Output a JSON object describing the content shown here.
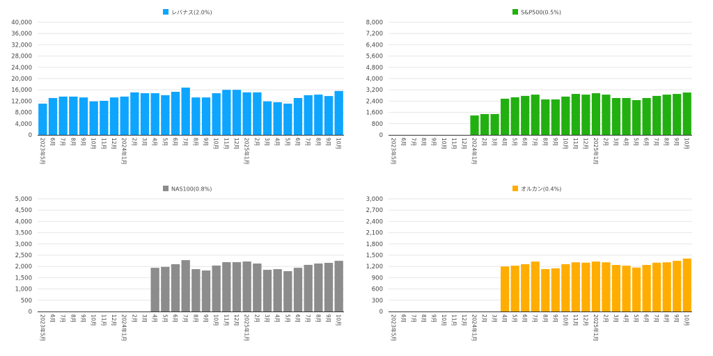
{
  "chart_data": [
    {
      "type": "bar",
      "title": "",
      "legend": {
        "label": "レバナス(2.0%)",
        "position": "top-center"
      },
      "color": "#0ea5ff",
      "xlabel": "",
      "ylabel": "",
      "ylim": [
        0,
        40000
      ],
      "yticks": [
        0,
        4000,
        8000,
        12000,
        16000,
        20000,
        24000,
        28000,
        32000,
        36000,
        40000
      ],
      "ytick_labels": [
        "0",
        "4,000",
        "8,000",
        "12,000",
        "16,000",
        "20,000",
        "24,000",
        "28,000",
        "32,000",
        "36,000",
        "40,000"
      ],
      "grid": true,
      "categories": [
        "2023年5月",
        "6月",
        "7月",
        "8月",
        "9月",
        "10月",
        "11月",
        "12月",
        "2024年1月",
        "2月",
        "3月",
        "4月",
        "5月",
        "6月",
        "7月",
        "8月",
        "9月",
        "10月",
        "11月",
        "12月",
        "2025年1月",
        "2月",
        "3月",
        "4月",
        "5月",
        "6月",
        "7月",
        "8月",
        "9月",
        "10月"
      ],
      "values": [
        11100,
        13100,
        13600,
        13600,
        13300,
        11900,
        12100,
        13300,
        13600,
        15100,
        14800,
        14800,
        14100,
        15300,
        16800,
        13300,
        13300,
        14800,
        16000,
        16000,
        15100,
        15100,
        11900,
        11600,
        11100,
        13100,
        14100,
        14300,
        13800,
        15600
      ]
    },
    {
      "type": "bar",
      "title": "",
      "legend": {
        "label": "S&P500(0.5%)",
        "position": "top-center"
      },
      "color": "#22b010",
      "xlabel": "",
      "ylabel": "",
      "ylim": [
        0,
        8000
      ],
      "yticks": [
        0,
        800,
        1600,
        2400,
        3200,
        4000,
        4800,
        5600,
        6400,
        7200,
        8000
      ],
      "ytick_labels": [
        "0",
        "800",
        "1,600",
        "2,400",
        "3,200",
        "4,000",
        "4,800",
        "5,600",
        "6,400",
        "7,200",
        "8,000"
      ],
      "grid": true,
      "categories": [
        "2023年5月",
        "6月",
        "7月",
        "8月",
        "9月",
        "10月",
        "11月",
        "12月",
        "2024年1月",
        "2月",
        "3月",
        "4月",
        "5月",
        "6月",
        "7月",
        "8月",
        "9月",
        "10月",
        "11月",
        "12月",
        "2025年1月",
        "2月",
        "3月",
        "4月",
        "5月",
        "6月",
        "7月",
        "8月",
        "9月",
        "10月"
      ],
      "values": [
        0,
        0,
        0,
        0,
        0,
        0,
        0,
        0,
        1380,
        1480,
        1480,
        2570,
        2670,
        2770,
        2860,
        2520,
        2520,
        2720,
        2910,
        2860,
        2960,
        2860,
        2620,
        2620,
        2470,
        2620,
        2770,
        2860,
        2910,
        3010
      ]
    },
    {
      "type": "bar",
      "title": "",
      "legend": {
        "label": "NAS100(0.8%)",
        "position": "top-center"
      },
      "color": "#8c8c8c",
      "xlabel": "",
      "ylabel": "",
      "ylim": [
        0,
        5000
      ],
      "yticks": [
        0,
        500,
        1000,
        1500,
        2000,
        2500,
        3000,
        3500,
        4000,
        4500,
        5000
      ],
      "ytick_labels": [
        "0",
        "500",
        "1,000",
        "1,500",
        "2,000",
        "2,500",
        "3,000",
        "3,500",
        "4,000",
        "4,500",
        "5,000"
      ],
      "grid": true,
      "categories": [
        "2023年5月",
        "6月",
        "7月",
        "8月",
        "9月",
        "10月",
        "11月",
        "12月",
        "2024年1月",
        "2月",
        "3月",
        "4月",
        "5月",
        "6月",
        "7月",
        "8月",
        "9月",
        "10月",
        "11月",
        "12月",
        "2025年1月",
        "2月",
        "3月",
        "4月",
        "5月",
        "6月",
        "7月",
        "8月",
        "9月",
        "10月"
      ],
      "values": [
        0,
        0,
        0,
        0,
        0,
        0,
        0,
        0,
        0,
        0,
        0,
        1940,
        1980,
        2100,
        2280,
        1880,
        1820,
        2040,
        2190,
        2190,
        2220,
        2130,
        1850,
        1880,
        1790,
        1940,
        2070,
        2130,
        2160,
        2250
      ]
    },
    {
      "type": "bar",
      "title": "",
      "legend": {
        "label": "オルカン(0.4%)",
        "position": "top-center"
      },
      "color": "#ffad00",
      "xlabel": "",
      "ylabel": "",
      "ylim": [
        0,
        3000
      ],
      "yticks": [
        0,
        300,
        600,
        900,
        1200,
        1500,
        1800,
        2100,
        2400,
        2700,
        3000
      ],
      "ytick_labels": [
        "0",
        "300",
        "600",
        "900",
        "1,200",
        "1,500",
        "1,800",
        "2,100",
        "2,400",
        "2,700",
        "3,000"
      ],
      "grid": true,
      "categories": [
        "2023年5月",
        "6月",
        "7月",
        "8月",
        "9月",
        "10月",
        "11月",
        "12月",
        "2024年1月",
        "2月",
        "3月",
        "4月",
        "5月",
        "6月",
        "7月",
        "8月",
        "9月",
        "10月",
        "11月",
        "12月",
        "2025年1月",
        "2月",
        "3月",
        "4月",
        "5月",
        "6月",
        "7月",
        "8月",
        "9月",
        "10月"
      ],
      "values": [
        0,
        0,
        0,
        0,
        0,
        0,
        0,
        0,
        0,
        0,
        0,
        1200,
        1220,
        1260,
        1330,
        1130,
        1150,
        1260,
        1310,
        1300,
        1330,
        1310,
        1240,
        1220,
        1170,
        1240,
        1300,
        1310,
        1350,
        1410
      ]
    }
  ]
}
